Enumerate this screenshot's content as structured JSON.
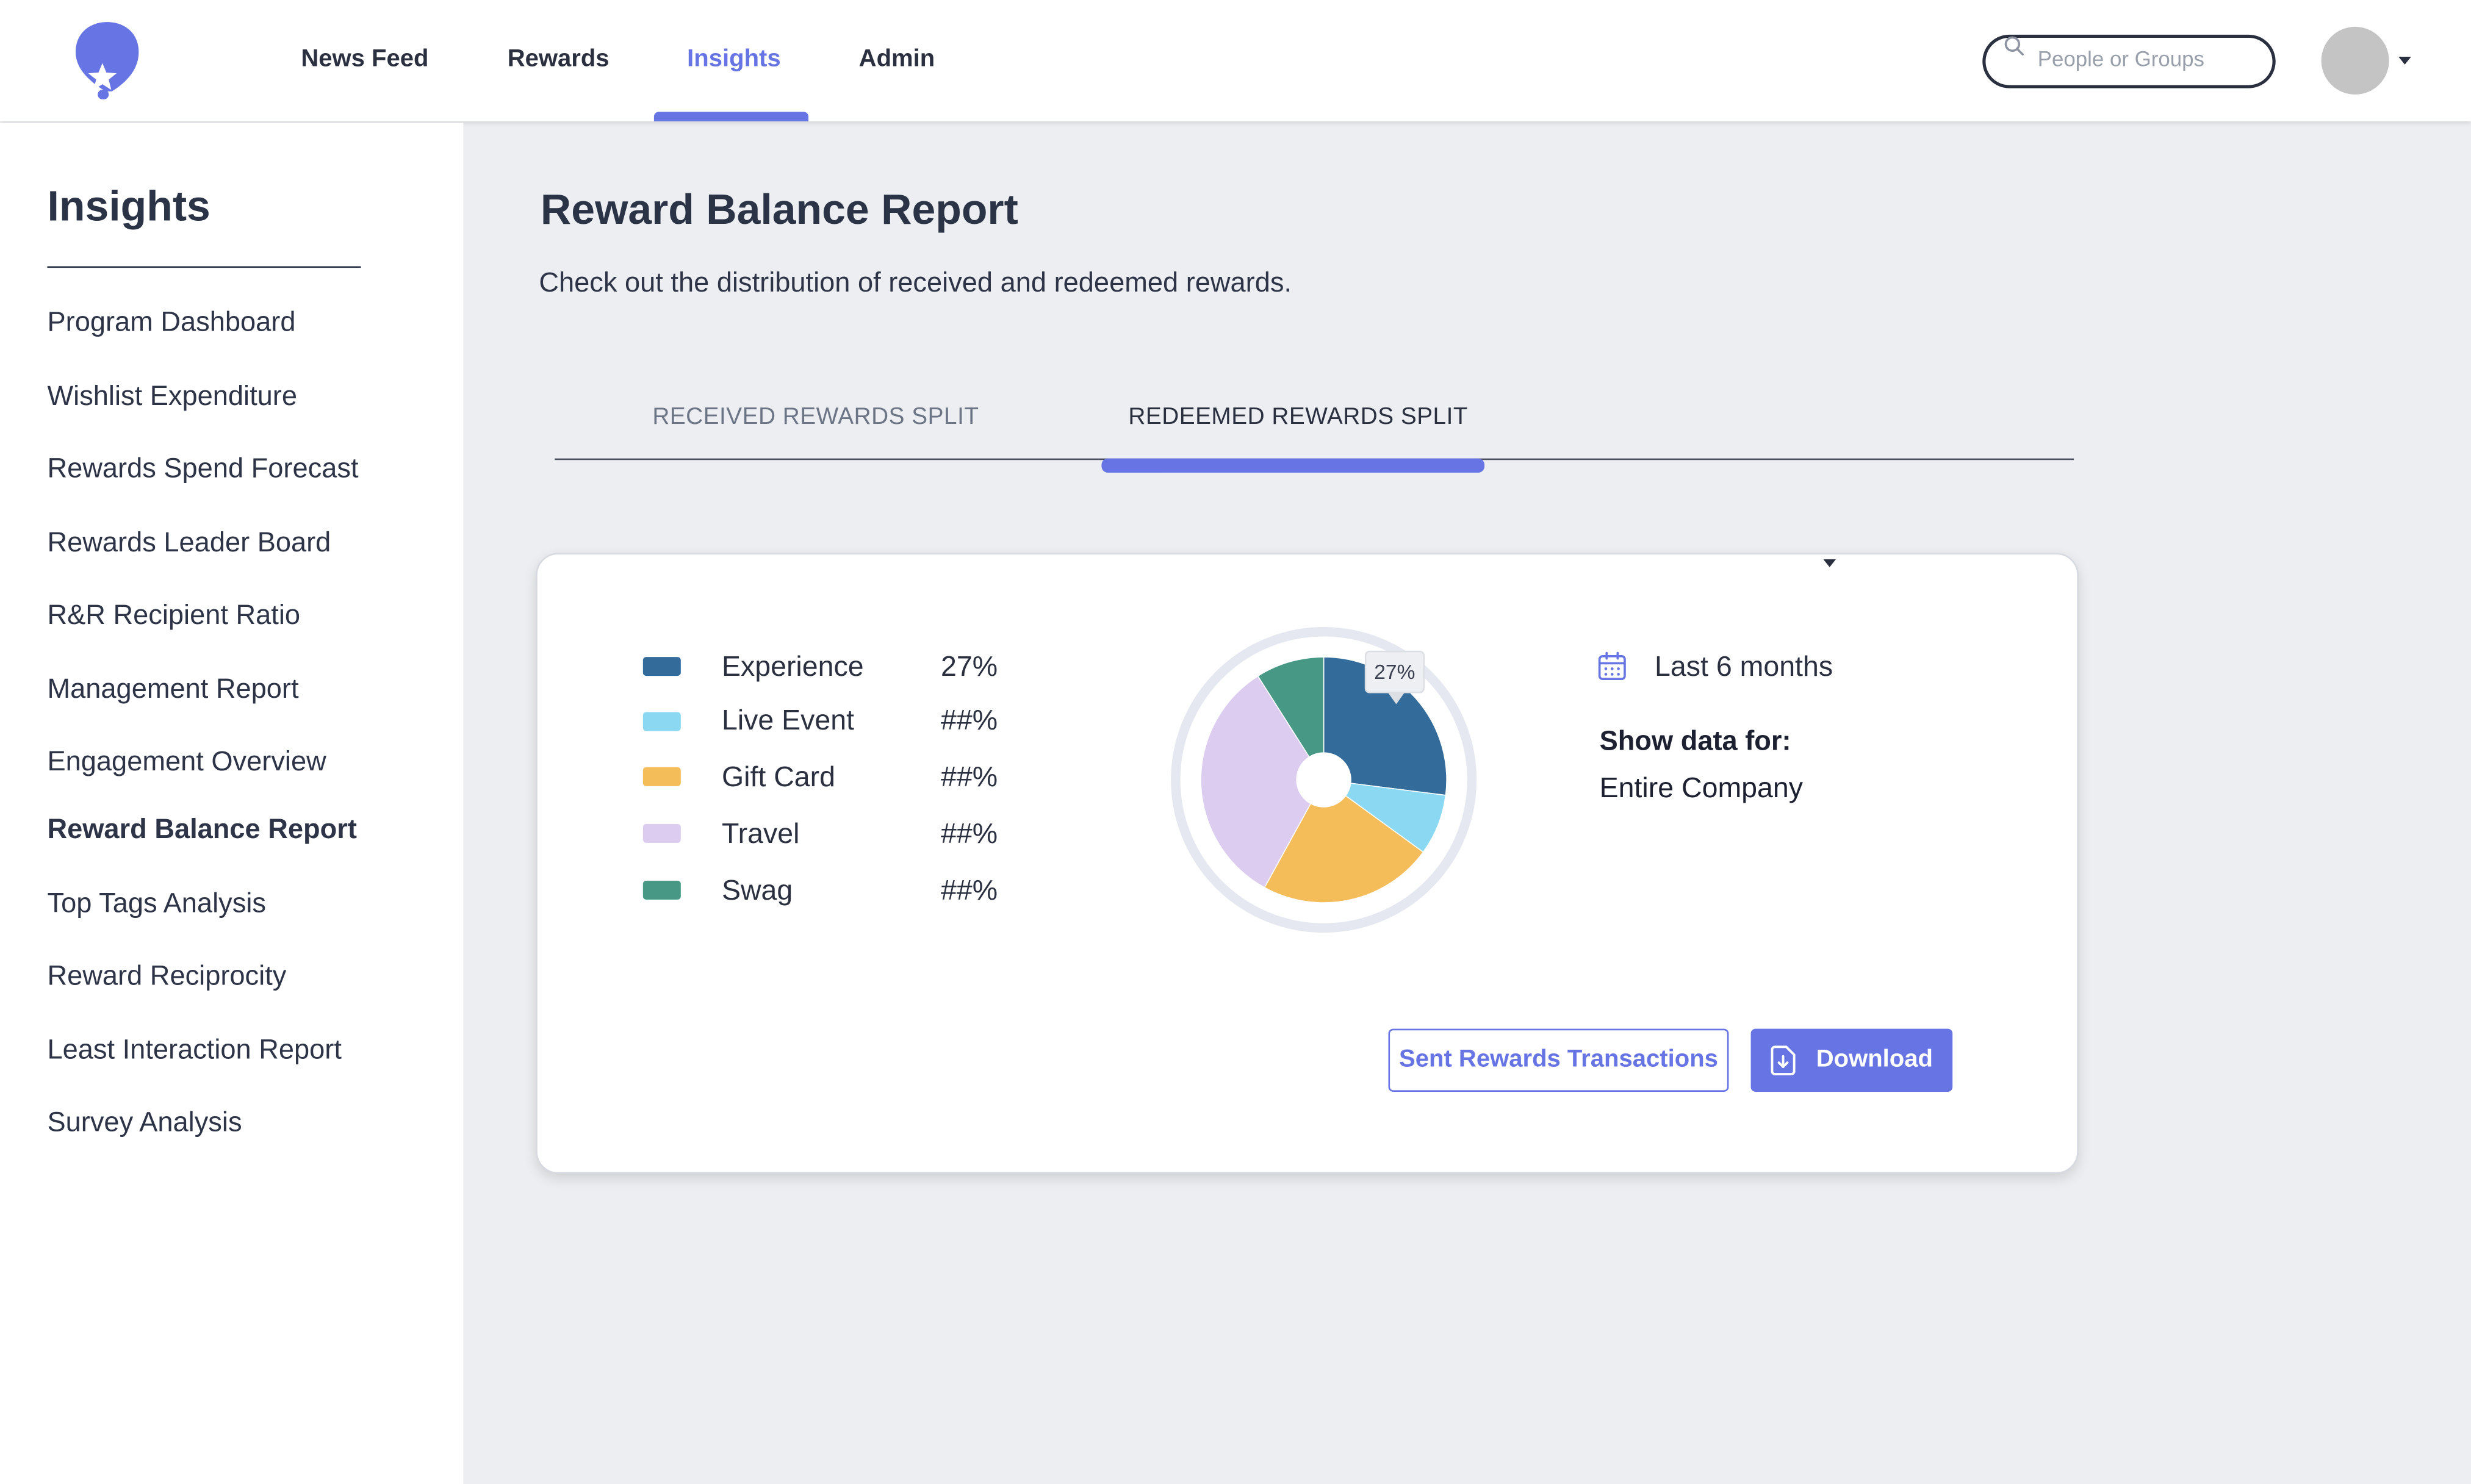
{
  "header": {
    "nav": [
      {
        "label": "News Feed",
        "active": false
      },
      {
        "label": "Rewards",
        "active": false
      },
      {
        "label": "Insights",
        "active": true
      },
      {
        "label": "Admin",
        "active": false
      }
    ],
    "search_placeholder": "People or Groups",
    "icons": {
      "logo": "balloon-star-logo",
      "search": "search-icon",
      "avatar_menu": "chevron-down-icon"
    }
  },
  "sidebar": {
    "title": "Insights",
    "items": [
      {
        "label": "Program Dashboard",
        "active": false
      },
      {
        "label": "Wishlist Expenditure",
        "active": false
      },
      {
        "label": "Rewards Spend Forecast",
        "active": false
      },
      {
        "label": "Rewards Leader Board",
        "active": false
      },
      {
        "label": "R&R Recipient Ratio",
        "active": false
      },
      {
        "label": "Management Report",
        "active": false
      },
      {
        "label": "Engagement Overview",
        "active": false
      },
      {
        "label": "Reward Balance Report",
        "active": true
      },
      {
        "label": "Top Tags Analysis",
        "active": false
      },
      {
        "label": "Reward Reciprocity",
        "active": false
      },
      {
        "label": "Least Interaction Report",
        "active": false
      },
      {
        "label": "Survey Analysis",
        "active": false
      }
    ]
  },
  "main": {
    "title": "Reward Balance Report",
    "subtitle": "Check out the distribution of received and redeemed rewards.",
    "tabs": [
      {
        "label": "RECEIVED REWARDS SPLIT",
        "active": false
      },
      {
        "label": "REDEEMED REWARDS SPLIT",
        "active": true
      }
    ]
  },
  "card": {
    "legend": [
      {
        "label": "Experience",
        "value": "27%",
        "color": "#336b9b"
      },
      {
        "label": "Live Event",
        "value": "##%",
        "color": "#8ad8f2"
      },
      {
        "label": "Gift Card",
        "value": "##%",
        "color": "#f5bd5a"
      },
      {
        "label": "Travel",
        "value": "##%",
        "color": "#dccdf0"
      },
      {
        "label": "Swag",
        "value": "##%",
        "color": "#479985"
      }
    ],
    "tooltip": "27%",
    "date_range": "Last 6 months",
    "show_data_label": "Show data for:",
    "show_data_value": "Entire Company",
    "sent_button": "Sent Rewards Transactions",
    "download_button": "Download",
    "colors": {
      "accent": "#6674e4",
      "ring": "#e5e8f0"
    }
  },
  "chart_data": {
    "type": "pie",
    "categories": [
      "Experience",
      "Live Event",
      "Gift Card",
      "Travel",
      "Swag"
    ],
    "values": [
      27,
      8,
      23,
      33,
      9
    ],
    "colors": [
      "#336b9b",
      "#8ad8f2",
      "#f5bd5a",
      "#dccdf0",
      "#479985"
    ]
  }
}
